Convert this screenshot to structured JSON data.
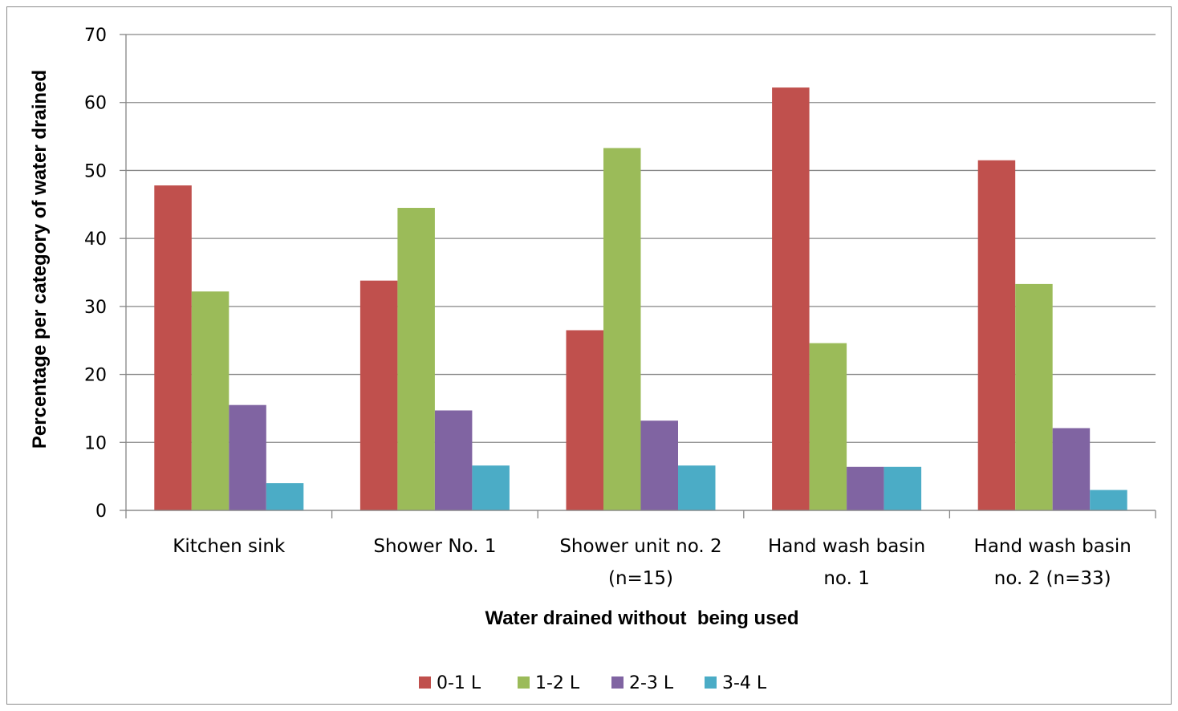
{
  "chart_data": {
    "type": "bar",
    "title": "",
    "xlabel": "Water drained without  being used",
    "ylabel": "Percentage per category of water drained",
    "ylim": [
      0,
      70
    ],
    "yticks": [
      0,
      10,
      20,
      30,
      40,
      50,
      60,
      70
    ],
    "grid": true,
    "legend_position": "bottom",
    "categories": [
      [
        "Kitchen sink"
      ],
      [
        "Shower No. 1"
      ],
      [
        "Shower unit no. 2",
        "(n=15)"
      ],
      [
        "Hand wash basin",
        "no. 1"
      ],
      [
        "Hand wash basin",
        "no. 2 (n=33)"
      ]
    ],
    "series": [
      {
        "name": "0-1 L",
        "color": "#c0504d",
        "values": [
          47.8,
          33.8,
          26.5,
          62.2,
          51.5
        ]
      },
      {
        "name": "1-2 L",
        "color": "#9bbb59",
        "values": [
          32.2,
          44.5,
          53.3,
          24.6,
          33.3
        ]
      },
      {
        "name": "2-3 L",
        "color": "#8064a2",
        "values": [
          15.5,
          14.7,
          13.2,
          6.4,
          12.1
        ]
      },
      {
        "name": "3-4 L",
        "color": "#4bacc6",
        "values": [
          4.0,
          6.6,
          6.6,
          6.4,
          3.0
        ]
      }
    ]
  }
}
